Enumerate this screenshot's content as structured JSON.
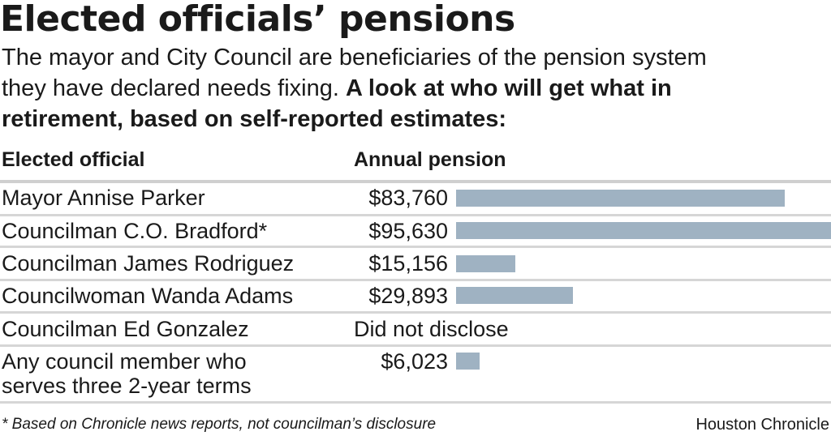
{
  "title": "Elected officials’ pensions",
  "subtitle": {
    "plain": "The mayor and City Council are beneficiaries of the pension system they have declared needs fixing. ",
    "bold": "A look at who will get what in retirement, based on self-reported estimates:"
  },
  "headers": {
    "official": "Elected official",
    "pension": "Annual pension"
  },
  "rows": [
    {
      "name": "Mayor Annise Parker",
      "value_text": "$83,760"
    },
    {
      "name": "Councilman C.O. Bradford*",
      "value_text": "$95,630"
    },
    {
      "name": "Councilman James Rodriguez",
      "value_text": "$15,156"
    },
    {
      "name": "Councilwoman Wanda Adams",
      "value_text": "$29,893"
    },
    {
      "name": "Councilman Ed Gonzalez",
      "value_text": "Did not disclose"
    },
    {
      "name_line1": "Any council member who",
      "name_line2": "serves three 2-year terms",
      "value_text": "$6,023"
    }
  ],
  "footnote": "* Based on Chronicle news reports, not councilman’s disclosure",
  "credit": "Houston Chronicle",
  "colors": {
    "bar": "#9fb2c2",
    "rule": "#d6d6d6",
    "text": "#1a1a1a"
  },
  "chart_data": {
    "type": "bar",
    "orientation": "horizontal",
    "title": "Elected officials’ pensions",
    "xlabel": "Annual pension",
    "ylabel": "Elected official",
    "categories": [
      "Mayor Annise Parker",
      "Councilman C.O. Bradford*",
      "Councilman James Rodriguez",
      "Councilwoman Wanda Adams",
      "Councilman Ed Gonzalez",
      "Any council member who serves three 2-year terms"
    ],
    "values": [
      83760,
      95630,
      15156,
      29893,
      null,
      6023
    ],
    "xlim": [
      0,
      95630
    ],
    "grid": false,
    "legend": "none"
  }
}
